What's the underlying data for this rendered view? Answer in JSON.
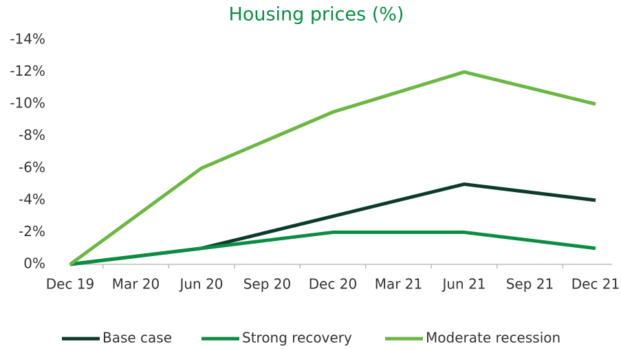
{
  "chart_data": {
    "type": "line",
    "title": "Housing prices (%)",
    "categories": [
      "Dec 19",
      "Mar 20",
      "Jun 20",
      "Sep 20",
      "Dec 20",
      "Mar 21",
      "Jun 21",
      "Sep 21",
      "Dec 21"
    ],
    "series": [
      {
        "name": "Base case",
        "color": "#0c3b2e",
        "values": [
          0,
          -0.5,
          -1,
          -2,
          -3,
          -4,
          -5,
          -4.5,
          -4
        ]
      },
      {
        "name": "Strong recovery",
        "color": "#0b8c43",
        "values": [
          0,
          -0.5,
          -1,
          -1.5,
          -2,
          -2,
          -2,
          -1.5,
          -1
        ]
      },
      {
        "name": "Moderate recession",
        "color": "#6cb744",
        "values": [
          0,
          -3,
          -6,
          -7.75,
          -9.5,
          -10.75,
          -12,
          -11,
          -10
        ]
      }
    ],
    "ylim": [
      0,
      -14
    ],
    "yticks": [
      {
        "value": 0,
        "label": "0%"
      },
      {
        "value": -2,
        "label": "-2%"
      },
      {
        "value": -4,
        "label": "-4%"
      },
      {
        "value": -6,
        "label": "-6%"
      },
      {
        "value": -8,
        "label": "-8%"
      },
      {
        "value": -10,
        "label": "-10%"
      },
      {
        "value": -12,
        "label": "-12%"
      },
      {
        "value": -14,
        "label": "-14%"
      }
    ],
    "grid": false,
    "legend": "bottom"
  }
}
